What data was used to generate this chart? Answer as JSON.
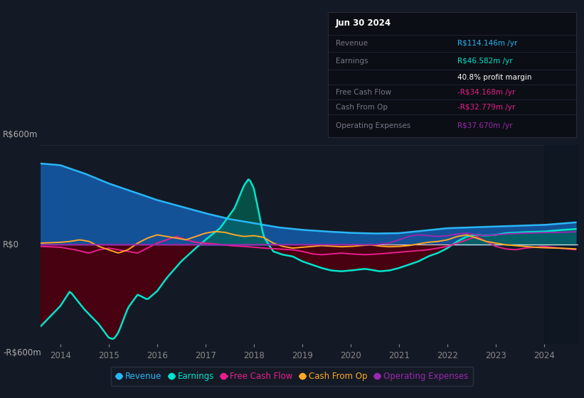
{
  "background_color": "#141a25",
  "plot_bg_color": "#141a25",
  "ylim": [
    -600,
    600
  ],
  "ylabel_top": "R$600m",
  "ylabel_zero": "R$0",
  "ylabel_bottom": "-R$600m",
  "x_tick_years": [
    2014,
    2015,
    2016,
    2017,
    2018,
    2019,
    2020,
    2021,
    2022,
    2023,
    2024
  ],
  "colors": {
    "revenue": "#29b6f6",
    "earnings": "#00e5cc",
    "free_cash_flow": "#e91e8c",
    "cash_from_op": "#ffa726",
    "operating_expenses": "#9c27b0",
    "zero_line": "#ffffff",
    "revenue_fill": "#1565c0",
    "earnings_neg_fill": "#4a0010",
    "earnings_pos_fill": "#006655",
    "grid": "#1e2a3a"
  },
  "info_box": {
    "date": "Jun 30 2024",
    "rows": [
      {
        "label": "Revenue",
        "value": "R$114.146m /yr",
        "label_color": "#777788",
        "value_color": "#29b6f6"
      },
      {
        "label": "Earnings",
        "value": "R$46.582m /yr",
        "label_color": "#777788",
        "value_color": "#00e5cc"
      },
      {
        "label": "",
        "value": "40.8% profit margin",
        "label_color": "#777788",
        "value_color": "#ffffff"
      },
      {
        "label": "Free Cash Flow",
        "value": "-R$34.168m /yr",
        "label_color": "#777788",
        "value_color": "#e91e8c"
      },
      {
        "label": "Cash From Op",
        "value": "-R$32.779m /yr",
        "label_color": "#777788",
        "value_color": "#e91e8c"
      },
      {
        "label": "Operating Expenses",
        "value": "R$37.670m /yr",
        "label_color": "#777788",
        "value_color": "#9c27b0"
      }
    ]
  },
  "legend": [
    {
      "label": "Revenue",
      "color": "#29b6f6"
    },
    {
      "label": "Earnings",
      "color": "#00e5cc"
    },
    {
      "label": "Free Cash Flow",
      "color": "#e91e8c"
    },
    {
      "label": "Cash From Op",
      "color": "#ffa726"
    },
    {
      "label": "Operating Expenses",
      "color": "#9c27b0"
    }
  ]
}
